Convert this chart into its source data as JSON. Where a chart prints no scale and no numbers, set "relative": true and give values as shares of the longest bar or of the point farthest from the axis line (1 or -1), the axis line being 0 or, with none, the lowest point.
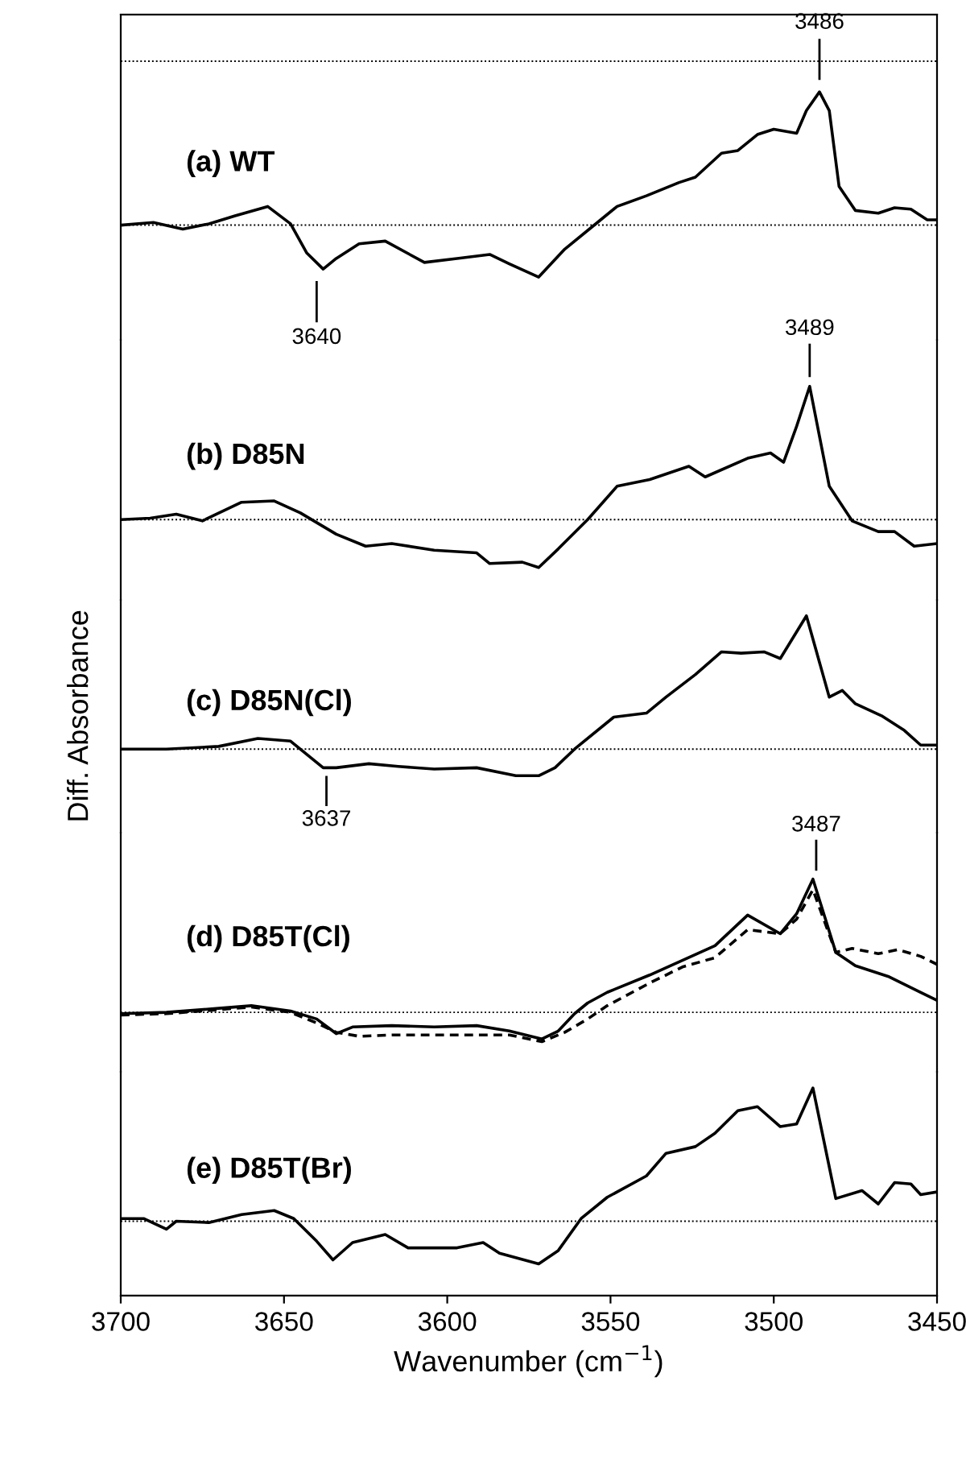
{
  "chart_data": [
    {
      "type": "line",
      "relative": true,
      "title": "(a) WT",
      "xlim": [
        3700,
        3450
      ],
      "tick_labels": false,
      "ref_lines": [
        {
          "axis": "y",
          "value": 0,
          "line_style": "dotted",
          "color": "#000000"
        },
        {
          "axis": "y",
          "value": 1.23,
          "line_style": "dotted",
          "color": "#000000"
        }
      ],
      "annotations": [
        {
          "text": "3486",
          "x": 3486,
          "y": 1.0
        },
        {
          "text": "3640",
          "x": 3640,
          "y": -0.33
        }
      ],
      "series": [
        {
          "color": "#000000",
          "line_style": "solid",
          "x": [
            3700,
            3690,
            3681,
            3673,
            3665,
            3655,
            3648,
            3643,
            3638,
            3634,
            3627,
            3619,
            3607,
            3597,
            3587,
            3581,
            3572,
            3564,
            3554,
            3548,
            3539,
            3529,
            3524,
            3516,
            3511,
            3505,
            3500,
            3493,
            3490,
            3486,
            3483,
            3480,
            3475,
            3468,
            3463,
            3458,
            3453,
            3450
          ],
          "values": [
            0,
            0.02,
            -0.03,
            0.01,
            0.07,
            0.14,
            0.01,
            -0.21,
            -0.33,
            -0.25,
            -0.14,
            -0.12,
            -0.28,
            -0.25,
            -0.22,
            -0.29,
            -0.39,
            -0.18,
            0.02,
            0.14,
            0.22,
            0.32,
            0.36,
            0.54,
            0.56,
            0.68,
            0.72,
            0.69,
            0.86,
            1.0,
            0.86,
            0.29,
            0.11,
            0.09,
            0.13,
            0.12,
            0.04,
            0.04
          ]
        }
      ]
    },
    {
      "type": "line",
      "relative": true,
      "title": "(b) D85N",
      "xlim": [
        3700,
        3450
      ],
      "tick_labels": false,
      "ref_lines": [
        {
          "axis": "y",
          "value": 0,
          "line_style": "dotted",
          "color": "#000000"
        }
      ],
      "annotations": [
        {
          "text": "3489",
          "x": 3489,
          "y": 1.0
        }
      ],
      "series": [
        {
          "color": "#000000",
          "line_style": "solid",
          "x": [
            3700,
            3691,
            3683,
            3675,
            3663,
            3653,
            3645,
            3634,
            3625,
            3617,
            3604,
            3591,
            3587,
            3577,
            3572,
            3566,
            3557,
            3548,
            3538,
            3526,
            3521,
            3508,
            3501,
            3497,
            3493,
            3489,
            3483,
            3476,
            3468,
            3463,
            3457,
            3450
          ],
          "values": [
            0,
            0.01,
            0.04,
            -0.01,
            0.13,
            0.14,
            0.05,
            -0.11,
            -0.2,
            -0.18,
            -0.23,
            -0.25,
            -0.33,
            -0.32,
            -0.36,
            -0.22,
            0,
            0.25,
            0.3,
            0.4,
            0.32,
            0.46,
            0.5,
            0.43,
            0.7,
            1.0,
            0.25,
            -0.01,
            -0.09,
            -0.09,
            -0.2,
            -0.18
          ]
        }
      ]
    },
    {
      "type": "line",
      "relative": true,
      "title": "(c) D85N(Cl)",
      "xlim": [
        3700,
        3450
      ],
      "tick_labels": false,
      "ylabel": "Diff. Absorbance",
      "ref_lines": [
        {
          "axis": "y",
          "value": 0,
          "line_style": "dotted",
          "color": "#000000"
        }
      ],
      "annotations": [
        {
          "text": "3637",
          "x": 3637,
          "y": -0.14
        }
      ],
      "series": [
        {
          "color": "#000000",
          "line_style": "solid",
          "x": [
            3700,
            3686,
            3670,
            3658,
            3648,
            3638,
            3634,
            3624,
            3615,
            3604,
            3591,
            3579,
            3572,
            3567,
            3561,
            3549,
            3539,
            3533,
            3524,
            3516,
            3510,
            3503,
            3498,
            3490,
            3483,
            3479,
            3475,
            3467,
            3460,
            3455,
            3450
          ],
          "values": [
            0,
            0,
            0.02,
            0.08,
            0.06,
            -0.14,
            -0.14,
            -0.11,
            -0.13,
            -0.15,
            -0.14,
            -0.2,
            -0.2,
            -0.14,
            0,
            0.24,
            0.27,
            0.39,
            0.56,
            0.73,
            0.72,
            0.73,
            0.68,
            1.0,
            0.39,
            0.44,
            0.34,
            0.25,
            0.14,
            0.03,
            0.03
          ]
        }
      ]
    },
    {
      "type": "line",
      "relative": true,
      "title": "(d) D85T(Cl)",
      "xlim": [
        3700,
        3450
      ],
      "tick_labels": false,
      "ref_lines": [
        {
          "axis": "y",
          "value": 0,
          "line_style": "dotted",
          "color": "#000000"
        }
      ],
      "annotations": [
        {
          "text": "3487",
          "x": 3487,
          "y": 1.0
        }
      ],
      "series": [
        {
          "color": "#000000",
          "line_style": "solid",
          "x": [
            3700,
            3686,
            3670,
            3660,
            3648,
            3640,
            3634,
            3629,
            3617,
            3604,
            3591,
            3581,
            3571,
            3566,
            3561,
            3557,
            3551,
            3538,
            3528,
            3518,
            3508,
            3498,
            3493,
            3488,
            3481,
            3475,
            3465,
            3455,
            3450
          ],
          "values": [
            -0.01,
            0,
            0.03,
            0.05,
            0.01,
            -0.05,
            -0.16,
            -0.11,
            -0.1,
            -0.11,
            -0.1,
            -0.14,
            -0.2,
            -0.14,
            -0.01,
            0.07,
            0.15,
            0.28,
            0.39,
            0.5,
            0.73,
            0.59,
            0.74,
            1.0,
            0.45,
            0.35,
            0.27,
            0.15,
            0.09
          ]
        },
        {
          "color": "#000000",
          "line_style": "dashed",
          "x": [
            3700,
            3686,
            3670,
            3660,
            3648,
            3640,
            3634,
            3627,
            3617,
            3604,
            3591,
            3581,
            3571,
            3564,
            3557,
            3551,
            3538,
            3528,
            3518,
            3508,
            3498,
            3493,
            3488,
            3481,
            3476,
            3468,
            3462,
            3455,
            3450
          ],
          "values": [
            -0.02,
            -0.01,
            0.02,
            0.04,
            0,
            -0.08,
            -0.15,
            -0.18,
            -0.17,
            -0.17,
            -0.17,
            -0.17,
            -0.22,
            -0.15,
            -0.05,
            0.05,
            0.22,
            0.34,
            0.41,
            0.62,
            0.59,
            0.7,
            0.92,
            0.45,
            0.48,
            0.44,
            0.47,
            0.42,
            0.36
          ]
        }
      ]
    },
    {
      "type": "line",
      "relative": true,
      "title": "(e) D85T(Br)",
      "xlim": [
        3700,
        3450
      ],
      "xticks": [
        3700,
        3650,
        3600,
        3550,
        3500,
        3450
      ],
      "tick_labels": "x",
      "xlabel": "Wavenumber (cm$^{−1}$)",
      "ref_lines": [
        {
          "axis": "y",
          "value": 0,
          "line_style": "dotted",
          "color": "#000000"
        }
      ],
      "series": [
        {
          "color": "#000000",
          "line_style": "solid",
          "x": [
            3700,
            3693,
            3686,
            3683,
            3673,
            3663,
            3653,
            3647,
            3640,
            3635,
            3629,
            3619,
            3612,
            3597,
            3589,
            3584,
            3572,
            3566,
            3559,
            3551,
            3539,
            3533,
            3524,
            3518,
            3511,
            3505,
            3498,
            3493,
            3488,
            3481,
            3473,
            3468,
            3463,
            3458,
            3455,
            3450
          ],
          "values": [
            0.02,
            0.02,
            -0.06,
            0,
            -0.01,
            0.05,
            0.08,
            0.02,
            -0.15,
            -0.29,
            -0.16,
            -0.1,
            -0.2,
            -0.2,
            -0.16,
            -0.24,
            -0.32,
            -0.22,
            0.02,
            0.18,
            0.34,
            0.51,
            0.56,
            0.66,
            0.83,
            0.86,
            0.71,
            0.73,
            1.0,
            0.17,
            0.23,
            0.13,
            0.29,
            0.28,
            0.2,
            0.22
          ]
        }
      ]
    }
  ]
}
